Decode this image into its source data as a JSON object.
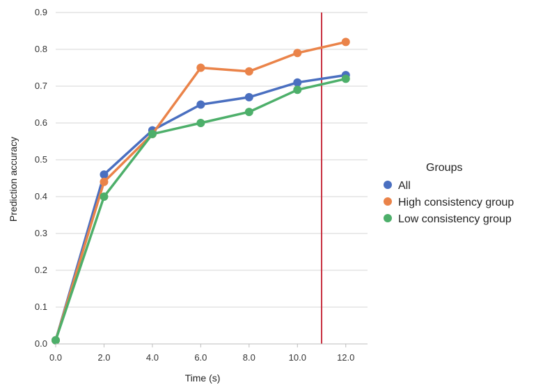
{
  "chart_data": {
    "type": "line",
    "xlabel": "Time (s)",
    "ylabel": "Prediction accuracy",
    "xlim": [
      0,
      12.9
    ],
    "ylim": [
      0,
      0.9
    ],
    "x": [
      0.0,
      2.0,
      4.0,
      6.0,
      8.0,
      10.0,
      12.0
    ],
    "x_tick_labels": [
      "0.0",
      "2.0",
      "4.0",
      "6.0",
      "8.0",
      "10.0",
      "12.0"
    ],
    "y_ticks": [
      0,
      0.1,
      0.2,
      0.3,
      0.4,
      0.5,
      0.6,
      0.7,
      0.8,
      0.9
    ],
    "y_tick_labels": [
      "0.0",
      "0.1",
      "0.2",
      "0.3",
      "0.4",
      "0.5",
      "0.6",
      "0.7",
      "0.8",
      "0.9"
    ],
    "grid": "horizontal",
    "vertical_reference_line": {
      "x": 11.0,
      "color": "#c8303f"
    },
    "legend": {
      "title": "Groups",
      "placement": "right"
    },
    "series": [
      {
        "name": "All",
        "color": "#4a6fc0",
        "values": [
          0.01,
          0.46,
          0.58,
          0.65,
          0.67,
          0.71,
          0.73
        ]
      },
      {
        "name": "High consistency group",
        "color": "#ea8349",
        "values": [
          0.01,
          0.44,
          0.57,
          0.75,
          0.74,
          0.79,
          0.82
        ]
      },
      {
        "name": "Low consistency group",
        "color": "#4daf6a",
        "values": [
          0.01,
          0.4,
          0.57,
          0.6,
          0.63,
          0.69,
          0.72
        ]
      }
    ]
  }
}
